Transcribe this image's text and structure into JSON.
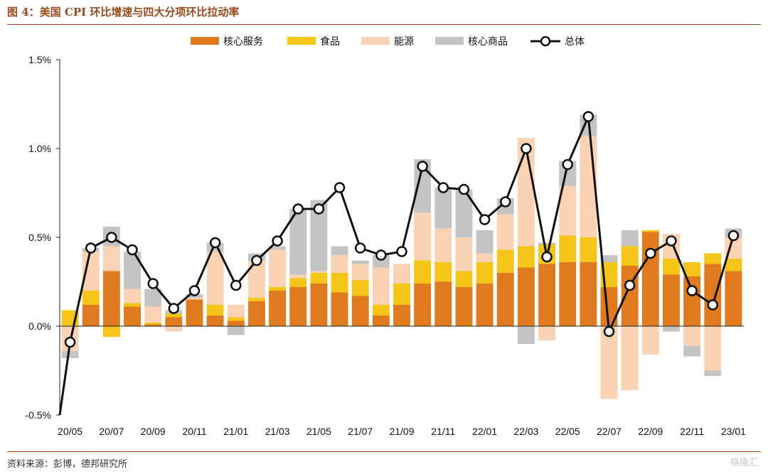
{
  "title": "图 4：美国 CPI 环比增速与四大分项环比拉动率",
  "source": "资料来源：彭博，德邦研究所",
  "watermark": "格隆汇",
  "colors": {
    "core_services": "#e07a1f",
    "food": "#f5c518",
    "energy": "#f9d3b3",
    "core_goods": "#c4c4c4",
    "total": "#111111",
    "accent": "#9b4a1c"
  },
  "chart_data": {
    "type": "bar",
    "stacked": true,
    "x": [
      "20/05",
      "20/06",
      "20/07",
      "20/08",
      "20/09",
      "20/10",
      "20/11",
      "20/12",
      "21/01",
      "21/02",
      "21/03",
      "21/04",
      "21/05",
      "21/06",
      "21/07",
      "21/08",
      "21/09",
      "21/10",
      "21/11",
      "21/12",
      "22/01",
      "22/02",
      "22/03",
      "22/04",
      "22/05",
      "22/06",
      "22/07",
      "22/08",
      "22/09",
      "22/10",
      "22/11",
      "22/12",
      "23/01"
    ],
    "tick_labels": [
      "20/05",
      "20/07",
      "20/09",
      "20/11",
      "21/01",
      "21/03",
      "21/05",
      "21/07",
      "21/09",
      "21/11",
      "22/01",
      "22/03",
      "22/05",
      "22/07",
      "22/09",
      "22/11",
      "23/01"
    ],
    "ylim": [
      -0.5,
      1.5
    ],
    "yticks": [
      "-0.5%",
      "0.0%",
      "0.5%",
      "1.0%",
      "1.5%"
    ],
    "ytick_values": [
      -0.5,
      0.0,
      0.5,
      1.0,
      1.5
    ],
    "legend_position": "top",
    "series": [
      {
        "name": "核心服务",
        "color": "#e07a1f",
        "values": [
          0.0,
          0.12,
          0.31,
          0.11,
          0.01,
          0.05,
          0.15,
          0.06,
          0.03,
          0.14,
          0.2,
          0.22,
          0.24,
          0.19,
          0.17,
          0.06,
          0.12,
          0.24,
          0.25,
          0.22,
          0.24,
          0.3,
          0.33,
          0.35,
          0.36,
          0.36,
          0.22,
          0.34,
          0.53,
          0.29,
          0.28,
          0.35,
          0.31
        ]
      },
      {
        "name": "食品",
        "color": "#f5c518",
        "values": [
          0.09,
          0.08,
          -0.06,
          0.02,
          0.01,
          0.02,
          0.0,
          0.06,
          0.02,
          0.02,
          0.02,
          0.05,
          0.06,
          0.11,
          0.09,
          0.06,
          0.12,
          0.13,
          0.11,
          0.09,
          0.12,
          0.13,
          0.12,
          0.11,
          0.15,
          0.14,
          0.14,
          0.11,
          0.01,
          0.09,
          0.08,
          0.06,
          0.07
        ]
      },
      {
        "name": "能源",
        "color": "#f9d3b3",
        "values": [
          -0.14,
          0.22,
          0.14,
          0.08,
          0.09,
          -0.03,
          0.01,
          0.3,
          0.07,
          0.21,
          0.21,
          0.02,
          0.01,
          0.1,
          0.09,
          0.21,
          0.11,
          0.27,
          0.19,
          0.19,
          0.05,
          0.2,
          0.61,
          -0.08,
          0.28,
          0.57,
          -0.41,
          -0.36,
          -0.16,
          0.14,
          -0.11,
          -0.25,
          0.12
        ]
      },
      {
        "name": "核心商品",
        "color": "#c4c4c4",
        "values": [
          -0.04,
          0.02,
          0.11,
          0.21,
          0.1,
          0.02,
          0.02,
          0.05,
          -0.05,
          0.04,
          0.02,
          0.37,
          0.4,
          0.05,
          0.02,
          0.07,
          0.0,
          0.3,
          0.23,
          0.27,
          0.13,
          0.09,
          -0.1,
          0.01,
          0.14,
          0.12,
          0.04,
          0.09,
          0.0,
          -0.03,
          -0.06,
          -0.03,
          0.05
        ]
      }
    ],
    "total": {
      "name": "总体",
      "color": "#111111",
      "values": [
        -0.09,
        0.44,
        0.5,
        0.43,
        0.24,
        0.1,
        0.2,
        0.47,
        0.23,
        0.37,
        0.48,
        0.66,
        0.66,
        0.78,
        0.44,
        0.4,
        0.42,
        0.9,
        0.78,
        0.77,
        0.6,
        0.7,
        1.0,
        0.39,
        0.91,
        1.18,
        -0.03,
        0.23,
        0.41,
        0.48,
        0.2,
        0.12,
        0.51
      ]
    }
  }
}
